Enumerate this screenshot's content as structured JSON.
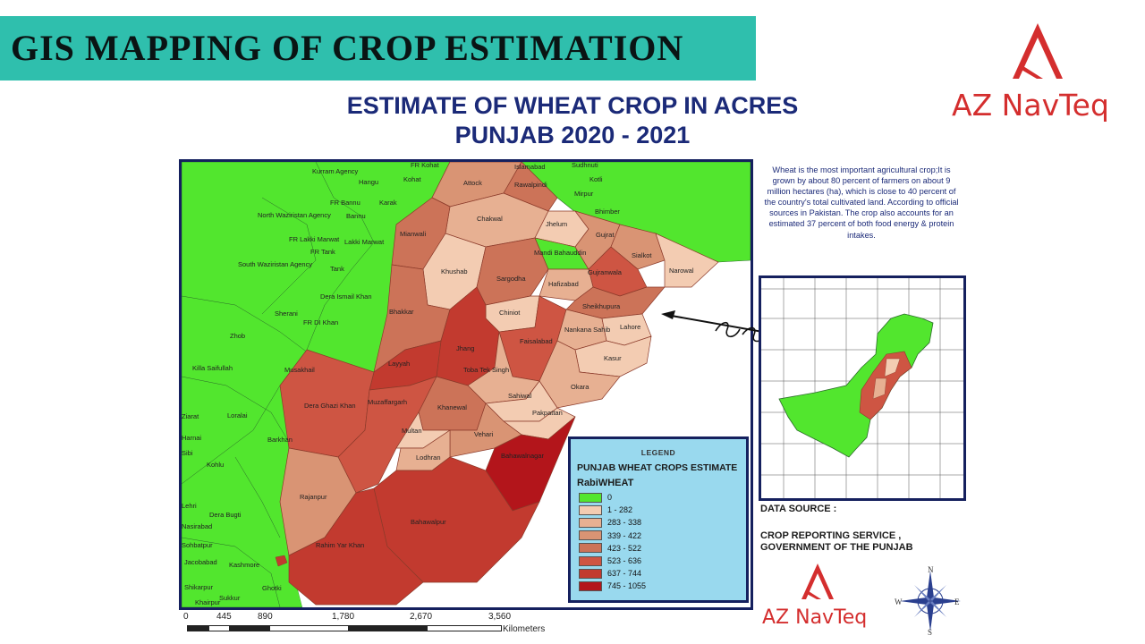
{
  "banner": {
    "title": "GIS MAPPING OF CROP ESTIMATION"
  },
  "brand": {
    "name": "AZ NavTeq",
    "color": "#d42e2e"
  },
  "map": {
    "title_line1": "ESTIMATE OF WHEAT CROP IN ACRES",
    "title_line2": "PUNJAB 2020 - 2021",
    "districts": {
      "attock": "Attock",
      "rawalpindi": "Rawalpindi",
      "islamabad": "Islamabad",
      "chakwal": "Chakwal",
      "jhelum": "Jhelum",
      "mianwali": "Mianwali",
      "khushab": "Khushab",
      "sargodha": "Sargodha",
      "mandi": "Mandi Bahauddin",
      "gujrat": "Gujrat",
      "sialkot": "Sialkot",
      "narowal": "Narowal",
      "hafizabad": "Hafizabad",
      "gujranwala": "Gujranwala",
      "chiniot": "Chiniot",
      "sheikhupura": "Sheikhupura",
      "bhakkar": "Bhakkar",
      "jhang": "Jhang",
      "faisalabad": "Faisalabad",
      "nankana": "Nankana Sahib",
      "lahore": "Lahore",
      "layyah": "Layyah",
      "tts": "Toba Tek Singh",
      "kasur": "Kasur",
      "okara": "Okara",
      "sahiwal": "Sahiwal",
      "pakpattan": "Pakpattan",
      "dgk": "Dera Ghazi Khan",
      "muzaffargarh": "Muzaffargarh",
      "khanewal": "Khanewal",
      "multan": "Multan",
      "vehari": "Vehari",
      "lodhran": "Lodhran",
      "bahawalnagar": "Bahawalnagar",
      "rajanpur": "Rajanpur",
      "bahawalpur": "Bahawalpur",
      "rykhan": "Rahim Yar Khan"
    },
    "other_labels": {
      "kurram": "Kurram Agency",
      "frkohat": "FR Kohat",
      "hangu": "Hangu",
      "kohat": "Kohat",
      "frbannu": "FR Bannu",
      "karak": "Karak",
      "nwa": "North Waziristan Agency",
      "bannu": "Bannu",
      "frlakki": "FR Lakki Marwat",
      "lakki": "Lakki Marwat",
      "frtank": "FR Tank",
      "tank": "Tank",
      "swa": "South Waziristan Agency",
      "dik": "Dera Ismail Khan",
      "sherani": "Sherani",
      "frdik": "FR DI Khan",
      "zhob": "Zhob",
      "killa": "Killa Saifullah",
      "musakhail": "Musakhail",
      "ziarat": "Ziarat",
      "loralai": "Loralai",
      "barkhan": "Barkhan",
      "harnai": "Harnai",
      "sibi": "Sibi",
      "kohlu": "Kohlu",
      "lehri": "Lehri",
      "deraBugti": "Dera Bugti",
      "nasirabad": "Nasirabad",
      "sohbatpur": "Sohbatpur",
      "jacobabad": "Jacobabad",
      "kashmore": "Kashmore",
      "shikarpur": "Shikarpur",
      "ghotki": "Ghotki",
      "sukkur": "Sukkur",
      "khairpur": "Khairpur",
      "sudhnuti": "Sudhnuti",
      "kotli": "Kotli",
      "mirpur": "Mirpur",
      "bhimber": "Bhimber"
    }
  },
  "legend": {
    "heading": "LEGEND",
    "subtitle": "PUNJAB WHEAT CROPS ESTIMATE",
    "field": "RabiWHEAT",
    "classes": [
      {
        "label": "0",
        "color": "#52e62e"
      },
      {
        "label": "1 - 282",
        "color": "#f3ccb2"
      },
      {
        "label": "283 - 338",
        "color": "#e7b092"
      },
      {
        "label": "339 - 422",
        "color": "#d99474"
      },
      {
        "label": "423 - 522",
        "color": "#cc7358"
      },
      {
        "label": "523 - 636",
        "color": "#ce5543"
      },
      {
        "label": "637 - 744",
        "color": "#c23a2f"
      },
      {
        "label": "745 - 1055",
        "color": "#b3151b"
      }
    ]
  },
  "description": "Wheat is the most important agricultural crop;It is grown by about 80 percent of farmers on about 9 million hectares (ha), which is close to 40 percent of the country's total cultivated land. According to official sources in Pakistan. The crop also accounts for an estimated 37 percent of both food energy & protein intakes.",
  "data_source": {
    "label": "DATA SOURCE :",
    "line1": "CROP REPORTING SERVICE ,",
    "line2": "GOVERNMENT OF THE PUNJAB"
  },
  "scale": {
    "ticks": [
      "0",
      "445",
      "890",
      "1,780",
      "2,670",
      "3,560"
    ],
    "unit": "Kilometers"
  },
  "compass": {
    "n": "N",
    "e": "E",
    "s": "S",
    "w": "W"
  }
}
